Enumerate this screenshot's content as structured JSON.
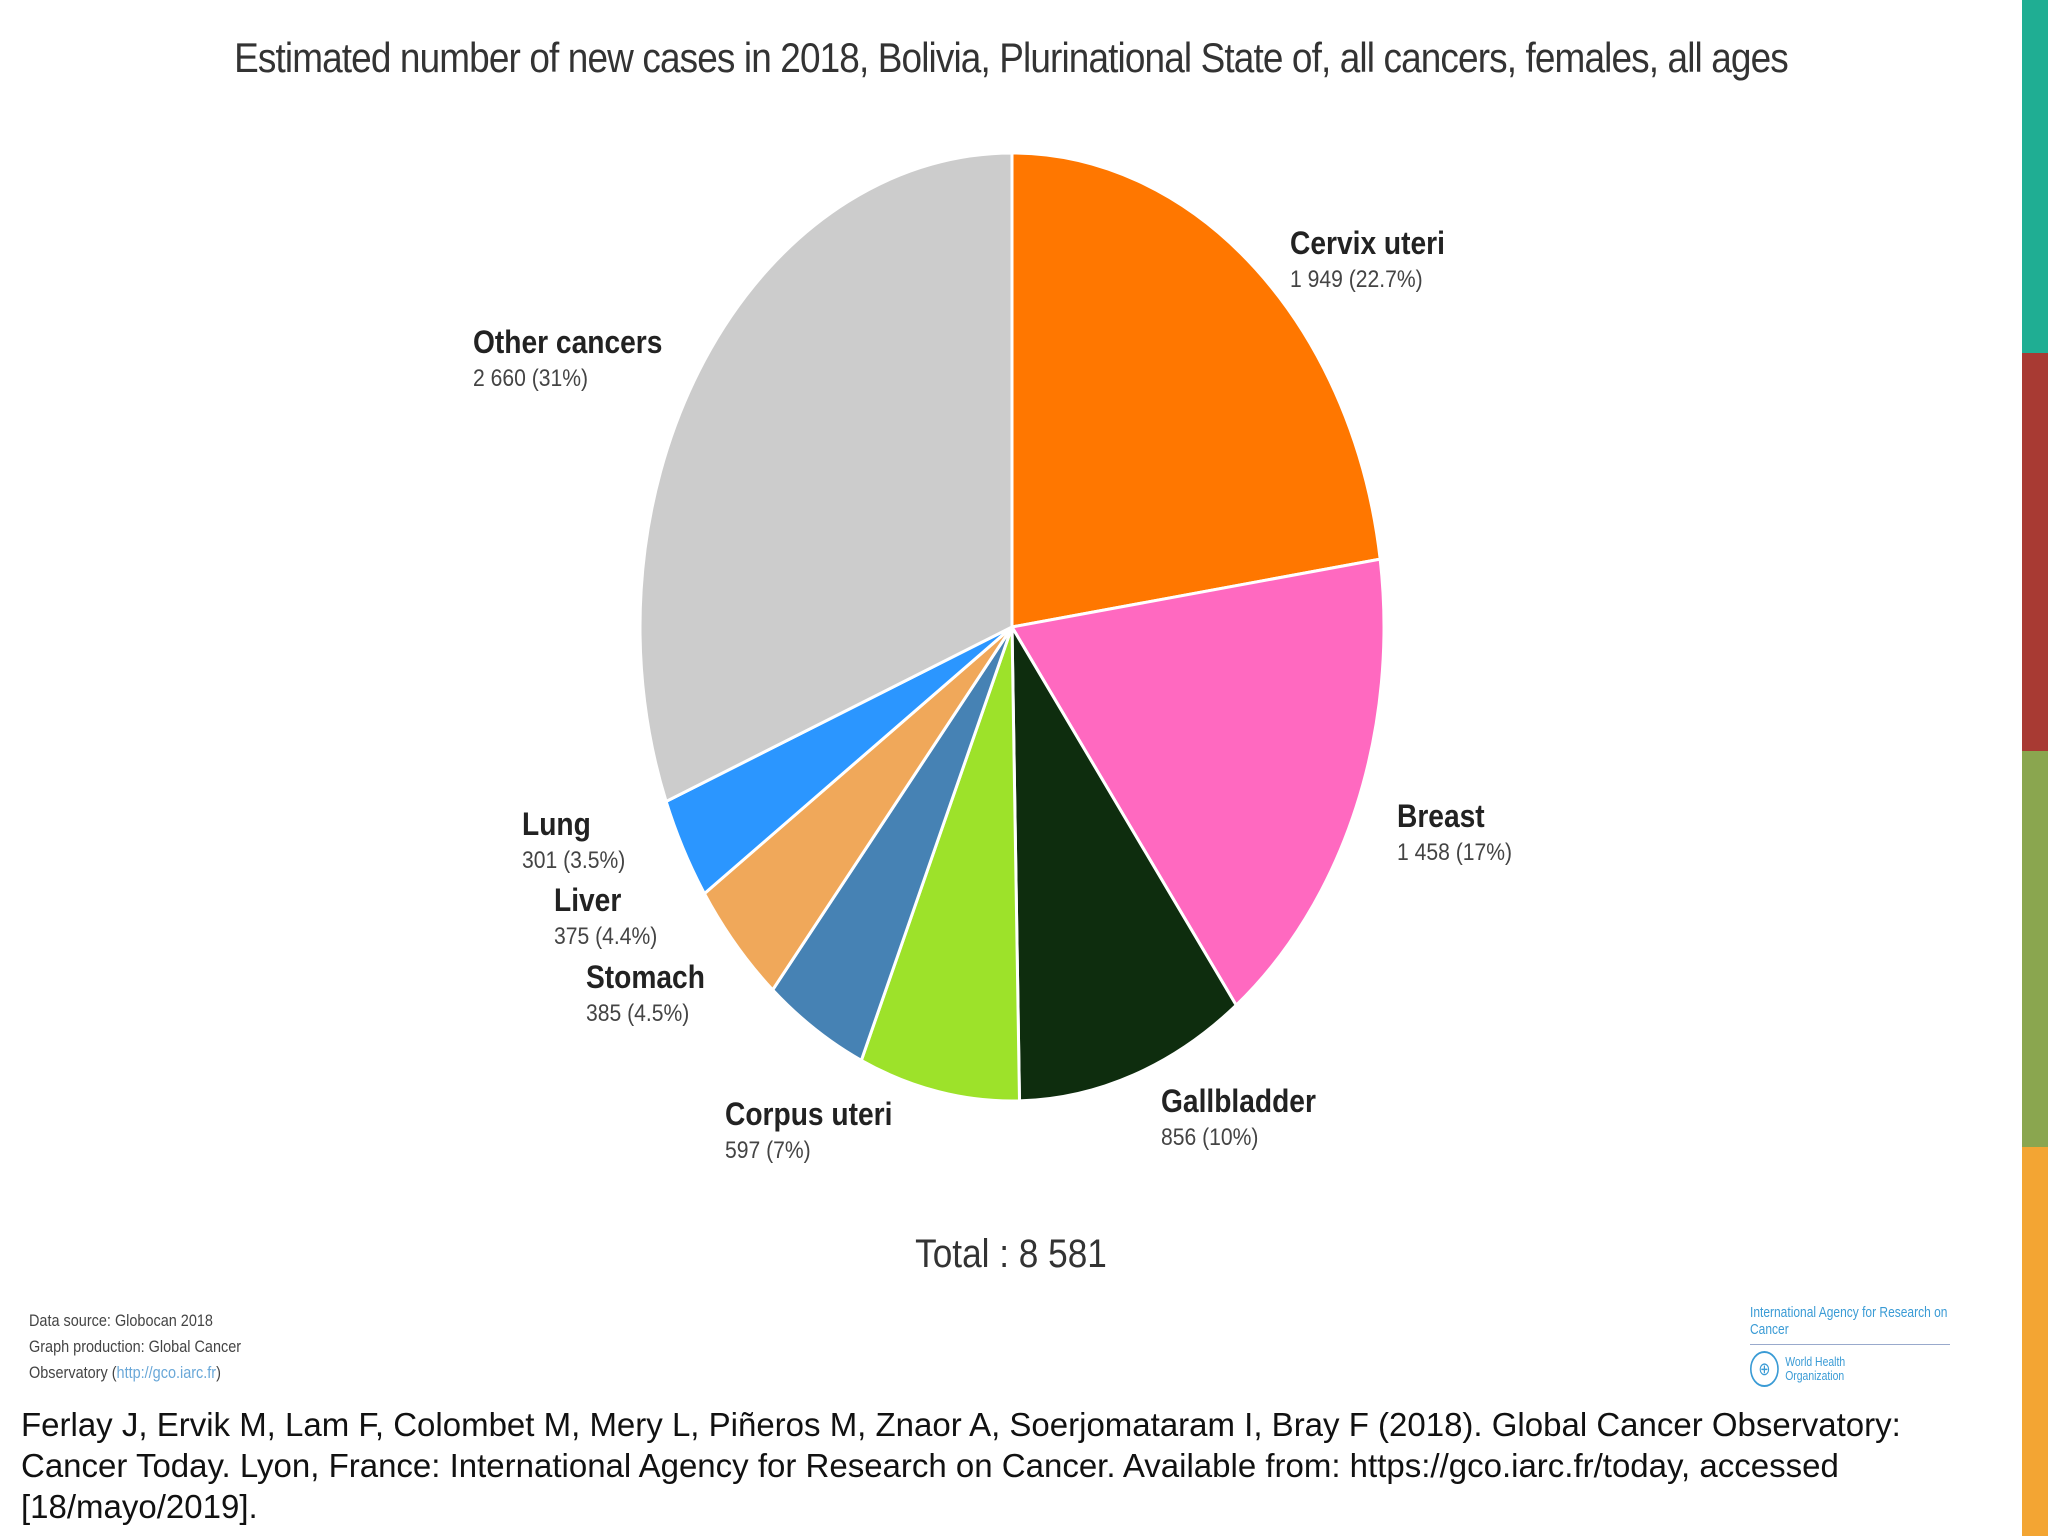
{
  "chart_data": {
    "type": "pie",
    "title": "Estimated number of new cases in 2018, Bolivia, Plurinational State of, all cancers, females, all ages",
    "slices": [
      {
        "name": "Cervix uteri",
        "value": 1949,
        "label": "1 949 (22.7%)",
        "color": "#ff7700"
      },
      {
        "name": "Breast",
        "value": 1458,
        "label": "1 458 (17%)",
        "color": "#ff69c0"
      },
      {
        "name": "Gallbladder",
        "value": 856,
        "label": "856 (10%)",
        "color": "#0e2d0e"
      },
      {
        "name": "Corpus uteri",
        "value": 597,
        "label": "597 (7%)",
        "color": "#9de22a"
      },
      {
        "name": "Stomach",
        "value": 385,
        "label": "385 (4.5%)",
        "color": "#4682b4"
      },
      {
        "name": "Liver",
        "value": 375,
        "label": "375 (4.4%)",
        "color": "#f0a85a"
      },
      {
        "name": "Lung",
        "value": 301,
        "label": "301 (3.5%)",
        "color": "#2b96ff"
      },
      {
        "name": "Other cancers",
        "value": 2660,
        "label": "2 660 (31%)",
        "color": "#cccccc"
      }
    ],
    "total_label": "Total : 8 581",
    "start": "top",
    "direction": "clockwise"
  },
  "footer": {
    "source_lines": [
      "Data source: Globocan 2018",
      "Graph production: Global Cancer",
      "Observatory ("
    ],
    "source_link": "http://gco.iarc.fr",
    "source_close": ")",
    "logo_top": "International Agency for Research on Cancer",
    "logo_who_1": "World Health",
    "logo_who_2": "Organization",
    "citation": "Ferlay J, Ervik M, Lam F, Colombet M, Mery L, Piñeros M, Znaor A, Soerjomataram I, Bray F (2018). Global Cancer Observatory: Cancer Today. Lyon, France: International Agency for Research on Cancer. Available from: https://gco.iarc.fr/today, accessed [18/mayo/2019]."
  },
  "stripe_colors": [
    "#1fae93",
    "#a83a33",
    "#8aa64f",
    "#f3a533"
  ]
}
